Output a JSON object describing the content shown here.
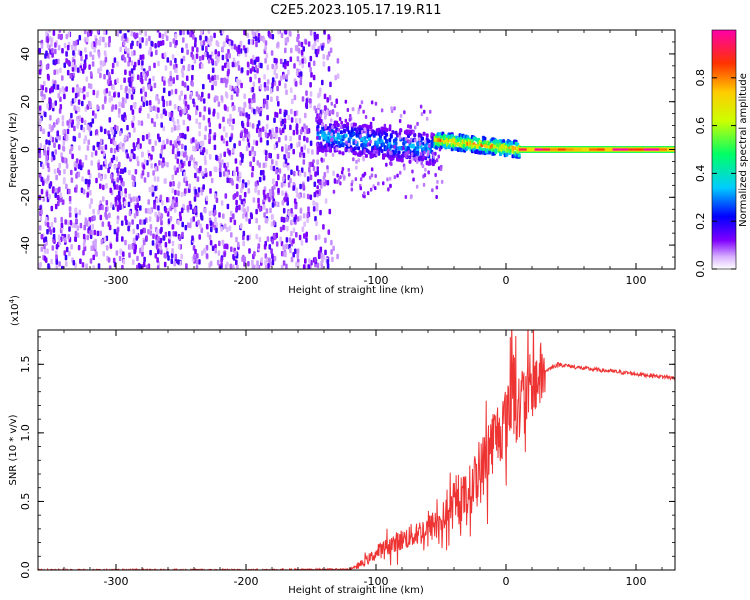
{
  "title": "C2E5.2023.105.17.19.R11",
  "chart_data": [
    {
      "type": "heatmap",
      "xlabel": "Height of straight line (km)",
      "ylabel": "Frequency (Hz)",
      "xlim": [
        -360,
        130
      ],
      "ylim": [
        -50,
        50
      ],
      "xticks": [
        -300,
        -200,
        -100,
        0,
        100
      ],
      "yticks": [
        -40,
        -20,
        0,
        20,
        40
      ],
      "grid": false,
      "colorbar": {
        "label": "Normalized spectral amplitude",
        "range": [
          0.0,
          1.0
        ],
        "ticks": [
          0.0,
          0.2,
          0.4,
          0.6,
          0.8
        ]
      },
      "regions": [
        {
          "x_range": [
            -360,
            -130
          ],
          "frequency_range": [
            -50,
            50
          ],
          "amplitude": 0.1,
          "description_visible": false
        },
        {
          "x_range": [
            -145,
            -55
          ],
          "frequency_center": [
            6,
            0
          ],
          "frequency_width": 8,
          "amplitude": 0.35
        },
        {
          "x_range": [
            -55,
            10
          ],
          "frequency_center": [
            4,
            0
          ],
          "frequency_width": 4,
          "amplitude": 0.8
        },
        {
          "x_range": [
            10,
            130
          ],
          "frequency_center": [
            0,
            0
          ],
          "frequency_width": 2,
          "amplitude": 0.95
        }
      ]
    },
    {
      "type": "line",
      "xlabel": "Height of straight line (km)",
      "ylabel": "SNR (10 * v/v)",
      "scale_label": "(x10",
      "scale_exponent": "4",
      "scale_close": ")",
      "xlim": [
        -360,
        130
      ],
      "ylim": [
        0.0,
        1.75
      ],
      "xticks": [
        -300,
        -200,
        -100,
        0,
        100
      ],
      "yticks": [
        "0.0",
        "0.5",
        "1.0",
        "1.5"
      ],
      "ytick_values": [
        0.0,
        0.5,
        1.0,
        1.5
      ],
      "grid": false,
      "series": [
        {
          "color": "#ee3333",
          "x": [
            -360,
            -300,
            -200,
            -120,
            -110,
            -100,
            -90,
            -80,
            -70,
            -60,
            -50,
            -40,
            -30,
            -20,
            -15,
            -10,
            -5,
            0,
            5,
            10,
            20,
            30,
            40,
            60,
            80,
            100,
            130
          ],
          "y": [
            0.0,
            0.0,
            0.0,
            0.005,
            0.05,
            0.12,
            0.18,
            0.22,
            0.26,
            0.3,
            0.36,
            0.45,
            0.55,
            0.7,
            0.82,
            0.95,
            1.02,
            1.1,
            1.15,
            1.2,
            1.35,
            1.45,
            1.5,
            1.47,
            1.45,
            1.43,
            1.4
          ]
        }
      ]
    }
  ]
}
